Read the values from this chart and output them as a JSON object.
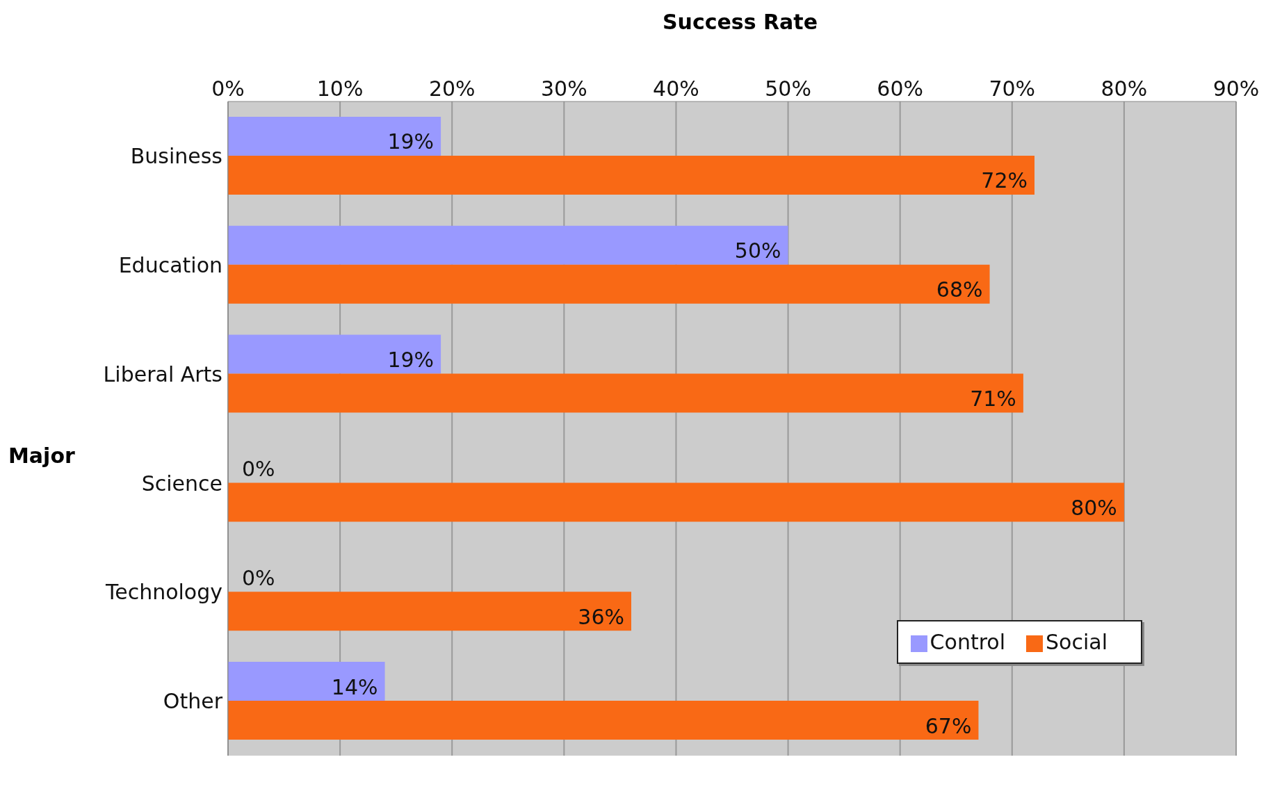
{
  "chart_data": {
    "type": "bar",
    "orientation": "horizontal",
    "xlabel": "Success Rate",
    "ylabel": "Major",
    "categories": [
      "Business",
      "Education",
      "Liberal Arts",
      "Science",
      "Technology",
      "Other"
    ],
    "series": [
      {
        "name": "Control",
        "color": "#9999ff",
        "values": [
          19,
          50,
          19,
          0,
          0,
          14
        ],
        "value_labels": [
          "19%",
          "50%",
          "19%",
          "0%",
          "0%",
          "14%"
        ]
      },
      {
        "name": "Social",
        "color": "#f96915",
        "values": [
          72,
          68,
          71,
          80,
          36,
          67
        ],
        "value_labels": [
          "72%",
          "68%",
          "71%",
          "80%",
          "36%",
          "67%"
        ]
      }
    ],
    "xlim": [
      0,
      90
    ],
    "xticks": [
      {
        "value": 0,
        "label": "0%"
      },
      {
        "value": 10,
        "label": "10%"
      },
      {
        "value": 20,
        "label": "20%"
      },
      {
        "value": 30,
        "label": "30%"
      },
      {
        "value": 40,
        "label": "40%"
      },
      {
        "value": 50,
        "label": "50%"
      },
      {
        "value": 60,
        "label": "60%"
      },
      {
        "value": 70,
        "label": "70%"
      },
      {
        "value": 80,
        "label": "80%"
      },
      {
        "value": 90,
        "label": "90%"
      }
    ],
    "grid": "x",
    "legend": "bottom right"
  }
}
